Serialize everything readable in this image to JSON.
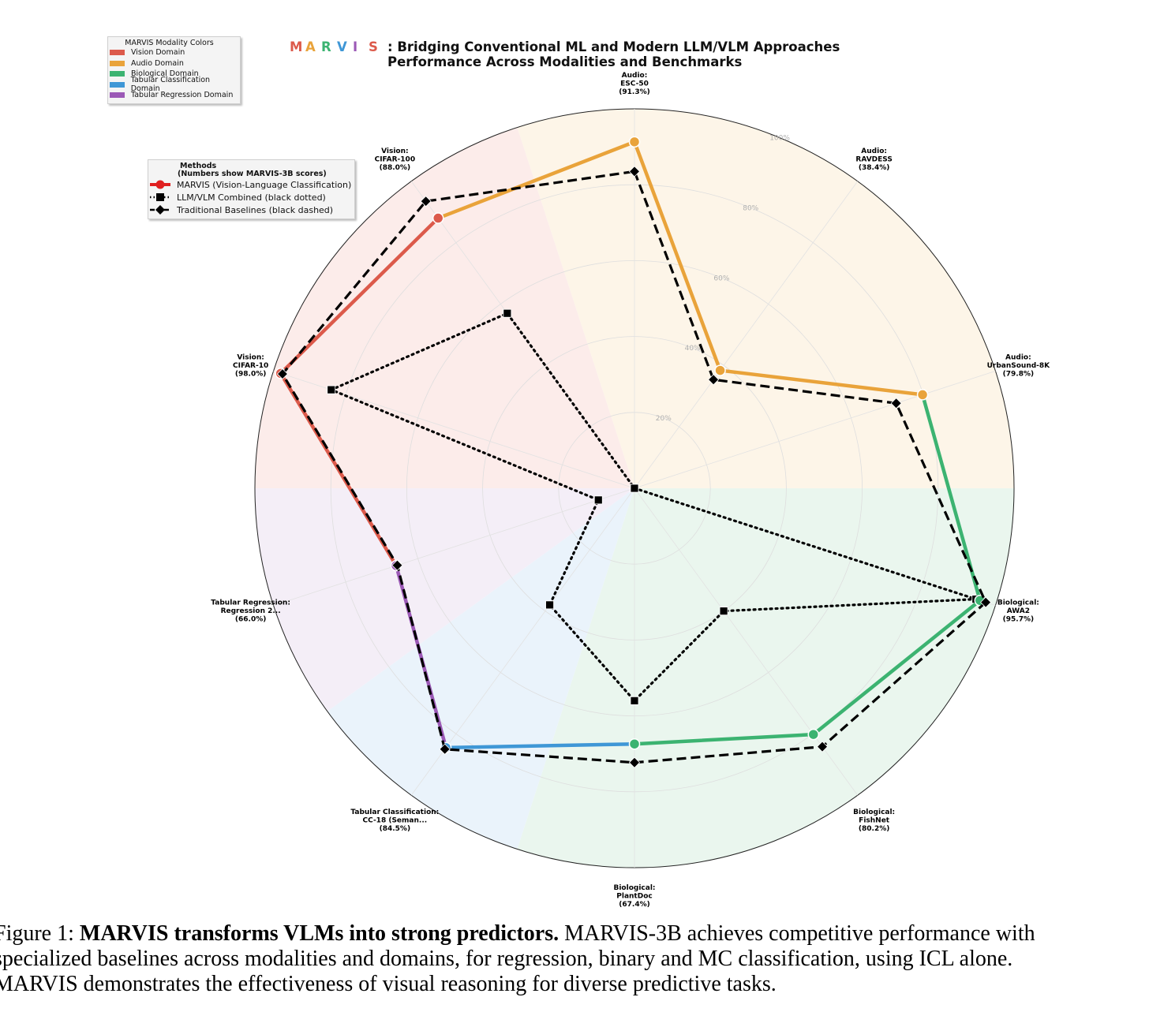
{
  "title": {
    "brand_letters": [
      {
        "char": "M",
        "color": "#dc5a4b"
      },
      {
        "char": "A",
        "color": "#e9a33a"
      },
      {
        "char": "R",
        "color": "#3cb371"
      },
      {
        "char": "V",
        "color": "#3f97d6"
      },
      {
        "char": "I",
        "color": "#9b59b6"
      },
      {
        "char": "S",
        "color": "#dc5a4b"
      }
    ],
    "line1": ": Bridging Conventional ML and Modern LLM/VLM Approaches",
    "line2": "Performance Across Modalities and Benchmarks"
  },
  "modality_legend": {
    "title": "MARVIS Modality Colors",
    "items": [
      {
        "label": "Vision Domain",
        "color": "#dc5a4b"
      },
      {
        "label": "Audio Domain",
        "color": "#e9a33a"
      },
      {
        "label": "Biological Domain",
        "color": "#3cb371"
      },
      {
        "label": "Tabular Classification Domain",
        "color": "#3f97d6"
      },
      {
        "label": "Tabular Regression Domain",
        "color": "#9b59b6"
      }
    ]
  },
  "methods_legend": {
    "title_line1": "Methods",
    "title_line2": "(Numbers show MARVIS-3B scores)",
    "items": [
      {
        "label": "MARVIS (Vision-Language Classification)",
        "marker": "circle"
      },
      {
        "label": "LLM/VLM Combined (black dotted)",
        "marker": "square"
      },
      {
        "label": "Traditional Baselines (black dashed)",
        "marker": "diamond"
      }
    ]
  },
  "chart_data": {
    "type": "radar",
    "radial_range": [
      0,
      100
    ],
    "radial_ticks": [
      "20%",
      "40%",
      "60%",
      "80%",
      "100%"
    ],
    "axes": [
      {
        "label": [
          "Audio:",
          "ESC-50",
          "(91.3%)"
        ],
        "domain": "audio"
      },
      {
        "label": [
          "Audio:",
          "RAVDESS",
          "(38.4%)"
        ],
        "domain": "audio"
      },
      {
        "label": [
          "Audio:",
          "UrbanSound-8K",
          "(79.8%)"
        ],
        "domain": "audio"
      },
      {
        "label": [
          "Biological:",
          "AWA2",
          "(95.7%)"
        ],
        "domain": "biological"
      },
      {
        "label": [
          "Biological:",
          "FishNet",
          "(80.2%)"
        ],
        "domain": "biological"
      },
      {
        "label": [
          "Biological:",
          "PlantDoc",
          "(67.4%)"
        ],
        "domain": "biological"
      },
      {
        "label": [
          "Tabular Classification:",
          "CC-18 (Seman...",
          "(84.5%)"
        ],
        "domain": "tabular_classification"
      },
      {
        "label": [
          "Tabular Regression:",
          "Regression 2...",
          "(66.0%)"
        ],
        "domain": "tabular_regression"
      },
      {
        "label": [
          "Vision:",
          "CIFAR-10",
          "(98.0%)"
        ],
        "domain": "vision"
      },
      {
        "label": [
          "Vision:",
          "CIFAR-100",
          "(88.0%)"
        ],
        "domain": "vision"
      }
    ],
    "series": [
      {
        "name": "MARVIS (Vision-Language Classification)",
        "style": "solid",
        "marker": "circle",
        "values": [
          91.3,
          38.4,
          79.8,
          95.7,
          80.2,
          67.4,
          84.5,
          66.0,
          98.0,
          88.0
        ]
      },
      {
        "name": "LLM/VLM Combined (black dotted)",
        "style": "dotted",
        "marker": "square",
        "values": [
          0,
          0,
          0,
          94.6,
          40.0,
          56.0,
          38.0,
          10.0,
          84.0,
          57.0
        ]
      },
      {
        "name": "Traditional Baselines (black dashed)",
        "style": "dashed",
        "marker": "diamond",
        "values": [
          83.5,
          35.4,
          72.5,
          97.3,
          84.2,
          72.3,
          85.0,
          65.7,
          97.5,
          93.5
        ]
      }
    ],
    "domain_colors": {
      "audio": "#e9a33a",
      "biological": "#3cb371",
      "tabular_classification": "#3f97d6",
      "tabular_regression": "#9b59b6",
      "vision": "#dc5a4b"
    },
    "sector_fill_colors": {
      "audio": "#fdf5e8",
      "biological": "#eaf6ee",
      "tabular_classification": "#eaf3fb",
      "tabular_regression": "#f4eef7",
      "vision": "#fcecea"
    },
    "grid": true
  },
  "caption": {
    "label": "Figure 1: ",
    "bold": "MARVIS transforms VLMs into strong predictors.",
    "line1_rest": " MARVIS-3B achieves competitive performance with",
    "line2": "specialized baselines across modalities and domains, for regression, binary and MC classification, using ICL alone.",
    "line3": "MARVIS demonstrates the effectiveness of visual reasoning for diverse predictive tasks."
  }
}
